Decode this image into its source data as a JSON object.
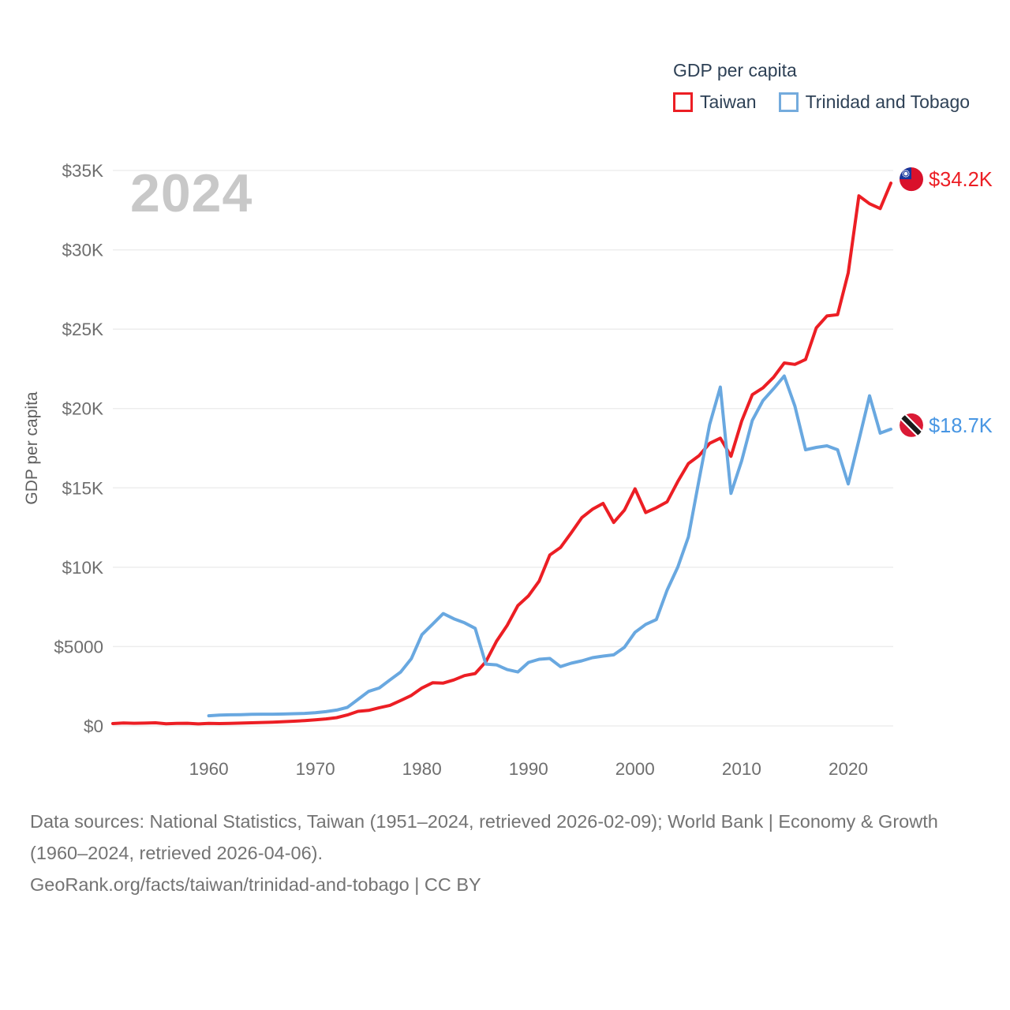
{
  "legend": {
    "title": "GDP per capita",
    "items": [
      {
        "label": "Taiwan",
        "color": "#ec1e24"
      },
      {
        "label": "Trinidad and Tobago",
        "color": "#74abdd"
      }
    ]
  },
  "watermark": "2024",
  "footer": {
    "sources": "Data sources: National Statistics, Taiwan (1951–2024, retrieved 2026-02-09); World Bank | Economy & Growth (1960–2024, retrieved 2026-04-06).",
    "attribution": "GeoRank.org/facts/taiwan/trinidad-and-tobago | CC BY"
  },
  "colors": {
    "taiwan_line": "#ec1e24",
    "taiwan_label": "#ec1e24",
    "trinidad_line": "#69a8e0",
    "trinidad_label": "#4896e3",
    "grid": "#ededed",
    "tick_text": "#6e6e6e",
    "axis_title": "#5f5f5f",
    "legend_text": "#2e4156",
    "watermark": "#c8c8c8",
    "footer_text": "#737373"
  },
  "chart_data": {
    "type": "line",
    "title": "GDP per capita",
    "ylabel": "GDP per capita",
    "xlim": [
      1951,
      2024
    ],
    "ylim": [
      0,
      35000
    ],
    "grid": true,
    "legend_position": "top-right",
    "y_ticks": [
      {
        "value": 0,
        "label": "$0"
      },
      {
        "value": 5000,
        "label": "$5000"
      },
      {
        "value": 10000,
        "label": "$10K"
      },
      {
        "value": 15000,
        "label": "$15K"
      },
      {
        "value": 20000,
        "label": "$20K"
      },
      {
        "value": 25000,
        "label": "$25K"
      },
      {
        "value": 30000,
        "label": "$30K"
      },
      {
        "value": 35000,
        "label": "$35K"
      }
    ],
    "x_ticks": [
      {
        "value": 1960,
        "label": "1960"
      },
      {
        "value": 1970,
        "label": "1970"
      },
      {
        "value": 1980,
        "label": "1980"
      },
      {
        "value": 1990,
        "label": "1990"
      },
      {
        "value": 2000,
        "label": "2000"
      },
      {
        "value": 2010,
        "label": "2010"
      },
      {
        "value": 2020,
        "label": "2020"
      }
    ],
    "series": [
      {
        "id": "taiwan",
        "name": "Taiwan",
        "color": "#ec1e24",
        "label_color": "#ec1e24",
        "flag": "taiwan",
        "end_label": "$34.2K",
        "start_year": 1951,
        "values": [
          150,
          190,
          170,
          180,
          200,
          140,
          160,
          170,
          130,
          160,
          150,
          160,
          180,
          200,
          220,
          240,
          270,
          300,
          340,
          390,
          440,
          520,
          690,
          920,
          980,
          1150,
          1300,
          1600,
          1920,
          2390,
          2720,
          2700,
          2900,
          3170,
          3300,
          4040,
          5330,
          6340,
          7580,
          8200,
          9130,
          10770,
          11240,
          12160,
          13120,
          13650,
          14020,
          12820,
          13590,
          14940,
          13450,
          13750,
          14120,
          15390,
          16530,
          17030,
          17810,
          18130,
          16990,
          19200,
          20870,
          21300,
          21970,
          22870,
          22780,
          23090,
          25080,
          25830,
          25910,
          28550,
          33400,
          32900,
          32600,
          34200
        ]
      },
      {
        "id": "trinidad-and-tobago",
        "name": "Trinidad and Tobago",
        "color": "#69a8e0",
        "label_color": "#4896e3",
        "flag": "trinidad",
        "end_label": "$18.7K",
        "start_year": 1960,
        "values": [
          640,
          680,
          700,
          710,
          730,
          740,
          740,
          750,
          770,
          790,
          830,
          900,
          1000,
          1170,
          1670,
          2180,
          2390,
          2900,
          3390,
          4230,
          5750,
          6410,
          7080,
          6750,
          6500,
          6150,
          3900,
          3850,
          3550,
          3400,
          4000,
          4200,
          4250,
          3740,
          3950,
          4100,
          4300,
          4400,
          4480,
          4950,
          5900,
          6400,
          6700,
          8550,
          10000,
          11900,
          15500,
          19000,
          21350,
          14650,
          16700,
          19250,
          20500,
          21250,
          22050,
          20150,
          17400,
          17550,
          17650,
          17400,
          15250,
          18000,
          20800,
          18450,
          18700
        ]
      }
    ]
  }
}
